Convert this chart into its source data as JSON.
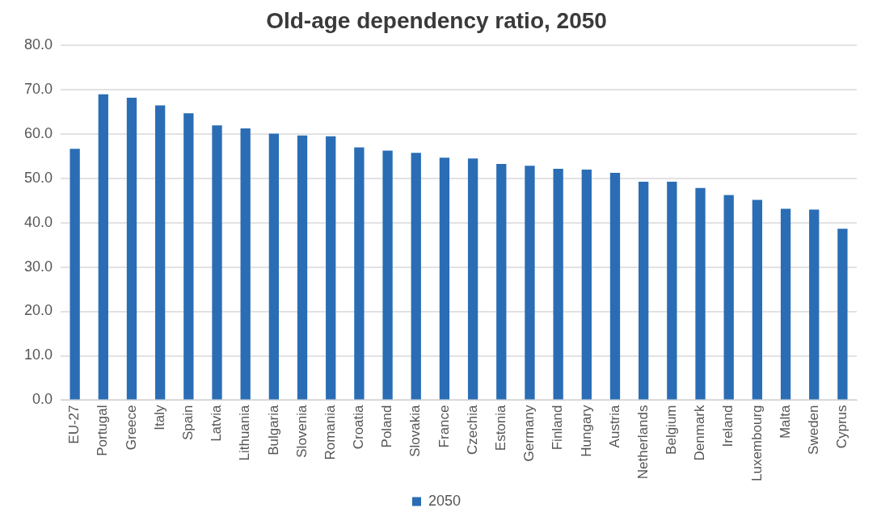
{
  "chart_data": {
    "type": "bar",
    "title": "Old-age dependency ratio, 2050",
    "categories": [
      "EU-27",
      "Portugal",
      "Greece",
      "Italy",
      "Spain",
      "Latvia",
      "Lithuania",
      "Bulgaria",
      "Slovenia",
      "Romania",
      "Croatia",
      "Poland",
      "Slovakia",
      "France",
      "Czechia",
      "Estonia",
      "Germany",
      "Finland",
      "Hungary",
      "Austria",
      "Netherlands",
      "Belgium",
      "Denmark",
      "Ireland",
      "Luxembourg",
      "Malta",
      "Sweden",
      "Cyprus"
    ],
    "series": [
      {
        "name": "2050",
        "color": "#2a6db5",
        "values": [
          56.6,
          68.9,
          68.1,
          66.4,
          64.6,
          61.9,
          61.2,
          60.0,
          59.6,
          59.4,
          56.9,
          56.2,
          55.7,
          54.6,
          54.4,
          53.2,
          52.8,
          52.1,
          51.9,
          51.2,
          49.2,
          49.2,
          47.8,
          46.2,
          45.1,
          43.1,
          42.9,
          38.6
        ]
      }
    ],
    "ylim": [
      0,
      80
    ],
    "yticks": [
      {
        "value": 0,
        "label": "0.0"
      },
      {
        "value": 10,
        "label": "10.0"
      },
      {
        "value": 20,
        "label": "20.0"
      },
      {
        "value": 30,
        "label": "30.0"
      },
      {
        "value": 40,
        "label": "40.0"
      },
      {
        "value": 50,
        "label": "50.0"
      },
      {
        "value": 60,
        "label": "60.0"
      },
      {
        "value": 70,
        "label": "70.0"
      },
      {
        "value": 80,
        "label": "80.0"
      }
    ],
    "grid": "y",
    "legend": "bottom"
  }
}
